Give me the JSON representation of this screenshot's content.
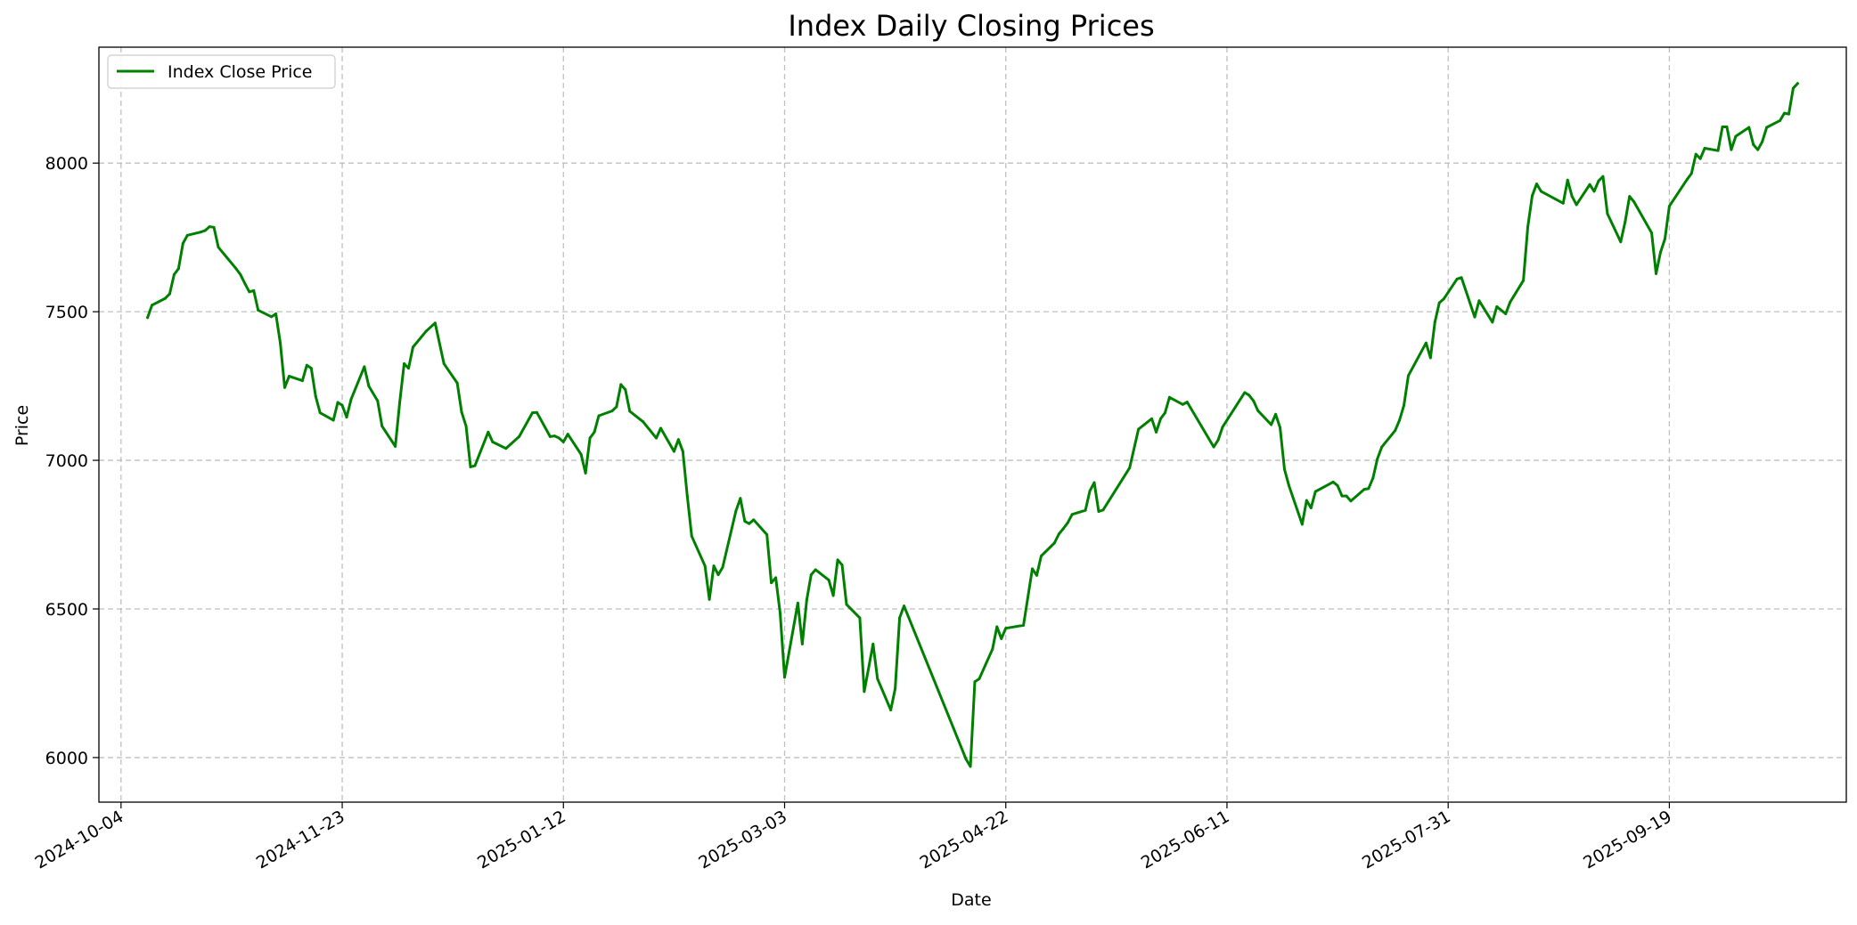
{
  "chart_data": {
    "type": "line",
    "title": "Index Daily Closing Prices",
    "xlabel": "Date",
    "ylabel": "Price",
    "x_type": "date",
    "xlim": [
      "2024-09-29",
      "2025-10-29"
    ],
    "ylim": [
      5850,
      8390
    ],
    "x_ticks": [
      "2024-10-04",
      "2024-11-23",
      "2025-01-12",
      "2025-03-03",
      "2025-04-22",
      "2025-06-11",
      "2025-07-31",
      "2025-09-19"
    ],
    "y_ticks": [
      6000,
      6500,
      7000,
      7500,
      8000
    ],
    "grid": true,
    "legend_position": "upper left",
    "colors": {
      "series": "#008000",
      "grid": "#b0b0b0",
      "axes": "#000000"
    },
    "series": [
      {
        "name": "Index Close Price",
        "color": "#008000",
        "points": [
          [
            "2024-10-10",
            7480
          ],
          [
            "2024-10-11",
            7522
          ],
          [
            "2024-10-14",
            7545
          ],
          [
            "2024-10-15",
            7560
          ],
          [
            "2024-10-16",
            7625
          ],
          [
            "2024-10-17",
            7645
          ],
          [
            "2024-10-18",
            7730
          ],
          [
            "2024-10-19",
            7757
          ],
          [
            "2024-10-22",
            7768
          ],
          [
            "2024-10-23",
            7773
          ],
          [
            "2024-10-24",
            7786
          ],
          [
            "2024-10-25",
            7784
          ],
          [
            "2024-10-26",
            7717
          ],
          [
            "2024-10-30",
            7645
          ],
          [
            "2024-10-31",
            7625
          ],
          [
            "2024-11-01",
            7595
          ],
          [
            "2024-11-02",
            7567
          ],
          [
            "2024-11-03",
            7571
          ],
          [
            "2024-11-04",
            7505
          ],
          [
            "2024-11-07",
            7483
          ],
          [
            "2024-11-08",
            7493
          ],
          [
            "2024-11-09",
            7395
          ],
          [
            "2024-11-10",
            7245
          ],
          [
            "2024-11-11",
            7283
          ],
          [
            "2024-11-14",
            7268
          ],
          [
            "2024-11-15",
            7320
          ],
          [
            "2024-11-16",
            7310
          ],
          [
            "2024-11-17",
            7215
          ],
          [
            "2024-11-18",
            7160
          ],
          [
            "2024-11-21",
            7135
          ],
          [
            "2024-11-22",
            7195
          ],
          [
            "2024-11-23",
            7185
          ],
          [
            "2024-11-24",
            7145
          ],
          [
            "2024-11-25",
            7205
          ],
          [
            "2024-11-28",
            7315
          ],
          [
            "2024-11-29",
            7250
          ],
          [
            "2024-12-01",
            7200
          ],
          [
            "2024-12-02",
            7115
          ],
          [
            "2024-12-05",
            7047
          ],
          [
            "2024-12-06",
            7195
          ],
          [
            "2024-12-07",
            7325
          ],
          [
            "2024-12-08",
            7310
          ],
          [
            "2024-12-09",
            7381
          ],
          [
            "2024-12-12",
            7435
          ],
          [
            "2024-12-14",
            7462
          ],
          [
            "2024-12-16",
            7325
          ],
          [
            "2024-12-19",
            7260
          ],
          [
            "2024-12-20",
            7162
          ],
          [
            "2024-12-21",
            7115
          ],
          [
            "2024-12-22",
            6978
          ],
          [
            "2024-12-23",
            6982
          ],
          [
            "2024-12-26",
            7095
          ],
          [
            "2024-12-27",
            7062
          ],
          [
            "2024-12-30",
            7040
          ],
          [
            "2025-01-02",
            7080
          ],
          [
            "2025-01-05",
            7160
          ],
          [
            "2025-01-06",
            7161
          ],
          [
            "2025-01-09",
            7080
          ],
          [
            "2025-01-10",
            7082
          ],
          [
            "2025-01-11",
            7075
          ],
          [
            "2025-01-12",
            7062
          ],
          [
            "2025-01-13",
            7088
          ],
          [
            "2025-01-16",
            7020
          ],
          [
            "2025-01-17",
            6957
          ],
          [
            "2025-01-18",
            7075
          ],
          [
            "2025-01-19",
            7095
          ],
          [
            "2025-01-20",
            7150
          ],
          [
            "2025-01-23",
            7166
          ],
          [
            "2025-01-24",
            7180
          ],
          [
            "2025-01-25",
            7255
          ],
          [
            "2025-01-26",
            7238
          ],
          [
            "2025-01-27",
            7165
          ],
          [
            "2025-01-30",
            7130
          ],
          [
            "2025-02-02",
            7075
          ],
          [
            "2025-02-03",
            7108
          ],
          [
            "2025-02-06",
            7030
          ],
          [
            "2025-02-07",
            7070
          ],
          [
            "2025-02-08",
            7030
          ],
          [
            "2025-02-09",
            6880
          ],
          [
            "2025-02-10",
            6745
          ],
          [
            "2025-02-13",
            6645
          ],
          [
            "2025-02-14",
            6532
          ],
          [
            "2025-02-15",
            6645
          ],
          [
            "2025-02-16",
            6615
          ],
          [
            "2025-02-17",
            6640
          ],
          [
            "2025-02-20",
            6830
          ],
          [
            "2025-02-21",
            6872
          ],
          [
            "2025-02-22",
            6795
          ],
          [
            "2025-02-23",
            6787
          ],
          [
            "2025-02-24",
            6800
          ],
          [
            "2025-02-27",
            6750
          ],
          [
            "2025-02-28",
            6588
          ],
          [
            "2025-03-01",
            6605
          ],
          [
            "2025-03-02",
            6485
          ],
          [
            "2025-03-03",
            6270
          ],
          [
            "2025-03-06",
            6520
          ],
          [
            "2025-03-07",
            6382
          ],
          [
            "2025-03-08",
            6530
          ],
          [
            "2025-03-09",
            6615
          ],
          [
            "2025-03-10",
            6632
          ],
          [
            "2025-03-13",
            6597
          ],
          [
            "2025-03-14",
            6545
          ],
          [
            "2025-03-15",
            6665
          ],
          [
            "2025-03-16",
            6648
          ],
          [
            "2025-03-17",
            6515
          ],
          [
            "2025-03-20",
            6470
          ],
          [
            "2025-03-21",
            6222
          ],
          [
            "2025-03-23",
            6382
          ],
          [
            "2025-03-24",
            6265
          ],
          [
            "2025-03-27",
            6160
          ],
          [
            "2025-03-28",
            6232
          ],
          [
            "2025-03-29",
            6470
          ],
          [
            "2025-03-30",
            6510
          ],
          [
            "2025-04-13",
            5995
          ],
          [
            "2025-04-14",
            5970
          ],
          [
            "2025-04-15",
            6255
          ],
          [
            "2025-04-16",
            6265
          ],
          [
            "2025-04-19",
            6365
          ],
          [
            "2025-04-20",
            6440
          ],
          [
            "2025-04-21",
            6400
          ],
          [
            "2025-04-22",
            6435
          ],
          [
            "2025-04-26",
            6445
          ],
          [
            "2025-04-28",
            6635
          ],
          [
            "2025-04-29",
            6613
          ],
          [
            "2025-04-30",
            6678
          ],
          [
            "2025-05-03",
            6722
          ],
          [
            "2025-05-04",
            6752
          ],
          [
            "2025-05-05",
            6770
          ],
          [
            "2025-05-06",
            6790
          ],
          [
            "2025-05-07",
            6818
          ],
          [
            "2025-05-10",
            6832
          ],
          [
            "2025-05-11",
            6897
          ],
          [
            "2025-05-12",
            6925
          ],
          [
            "2025-05-13",
            6828
          ],
          [
            "2025-05-14",
            6833
          ],
          [
            "2025-05-20",
            6975
          ],
          [
            "2025-05-22",
            7105
          ],
          [
            "2025-05-25",
            7140
          ],
          [
            "2025-05-26",
            7095
          ],
          [
            "2025-05-27",
            7140
          ],
          [
            "2025-05-28",
            7160
          ],
          [
            "2025-05-29",
            7212
          ],
          [
            "2025-06-01",
            7188
          ],
          [
            "2025-06-02",
            7196
          ],
          [
            "2025-06-08",
            7045
          ],
          [
            "2025-06-09",
            7068
          ],
          [
            "2025-06-10",
            7112
          ],
          [
            "2025-06-15",
            7228
          ],
          [
            "2025-06-16",
            7219
          ],
          [
            "2025-06-17",
            7200
          ],
          [
            "2025-06-18",
            7167
          ],
          [
            "2025-06-21",
            7120
          ],
          [
            "2025-06-22",
            7155
          ],
          [
            "2025-06-23",
            7110
          ],
          [
            "2025-06-24",
            6970
          ],
          [
            "2025-06-25",
            6915
          ],
          [
            "2025-06-28",
            6785
          ],
          [
            "2025-06-29",
            6865
          ],
          [
            "2025-06-30",
            6840
          ],
          [
            "2025-07-01",
            6895
          ],
          [
            "2025-07-05",
            6927
          ],
          [
            "2025-07-06",
            6915
          ],
          [
            "2025-07-07",
            6880
          ],
          [
            "2025-07-08",
            6880
          ],
          [
            "2025-07-09",
            6863
          ],
          [
            "2025-07-12",
            6902
          ],
          [
            "2025-07-13",
            6905
          ],
          [
            "2025-07-14",
            6940
          ],
          [
            "2025-07-15",
            7005
          ],
          [
            "2025-07-16",
            7045
          ],
          [
            "2025-07-19",
            7100
          ],
          [
            "2025-07-20",
            7135
          ],
          [
            "2025-07-21",
            7185
          ],
          [
            "2025-07-22",
            7285
          ],
          [
            "2025-07-26",
            7395
          ],
          [
            "2025-07-27",
            7345
          ],
          [
            "2025-07-28",
            7465
          ],
          [
            "2025-07-29",
            7530
          ],
          [
            "2025-07-30",
            7543
          ],
          [
            "2025-08-02",
            7610
          ],
          [
            "2025-08-03",
            7615
          ],
          [
            "2025-08-06",
            7482
          ],
          [
            "2025-08-07",
            7537
          ],
          [
            "2025-08-10",
            7465
          ],
          [
            "2025-08-11",
            7517
          ],
          [
            "2025-08-13",
            7493
          ],
          [
            "2025-08-14",
            7532
          ],
          [
            "2025-08-17",
            7605
          ],
          [
            "2025-08-18",
            7785
          ],
          [
            "2025-08-19",
            7890
          ],
          [
            "2025-08-20",
            7930
          ],
          [
            "2025-08-21",
            7905
          ],
          [
            "2025-08-26",
            7865
          ],
          [
            "2025-08-27",
            7943
          ],
          [
            "2025-08-28",
            7888
          ],
          [
            "2025-08-29",
            7860
          ],
          [
            "2025-09-01",
            7928
          ],
          [
            "2025-09-02",
            7905
          ],
          [
            "2025-09-03",
            7940
          ],
          [
            "2025-09-04",
            7955
          ],
          [
            "2025-09-05",
            7830
          ],
          [
            "2025-09-08",
            7735
          ],
          [
            "2025-09-09",
            7802
          ],
          [
            "2025-09-10",
            7888
          ],
          [
            "2025-09-11",
            7870
          ],
          [
            "2025-09-15",
            7765
          ],
          [
            "2025-09-16",
            7628
          ],
          [
            "2025-09-17",
            7700
          ],
          [
            "2025-09-18",
            7745
          ],
          [
            "2025-09-19",
            7855
          ],
          [
            "2025-09-23",
            7945
          ],
          [
            "2025-09-24",
            7965
          ],
          [
            "2025-09-25",
            8030
          ],
          [
            "2025-09-26",
            8015
          ],
          [
            "2025-09-27",
            8050
          ],
          [
            "2025-09-30",
            8042
          ],
          [
            "2025-10-01",
            8122
          ],
          [
            "2025-10-02",
            8122
          ],
          [
            "2025-10-03",
            8045
          ],
          [
            "2025-10-04",
            8090
          ],
          [
            "2025-10-07",
            8120
          ],
          [
            "2025-10-08",
            8062
          ],
          [
            "2025-10-09",
            8045
          ],
          [
            "2025-10-10",
            8072
          ],
          [
            "2025-10-11",
            8120
          ],
          [
            "2025-10-14",
            8143
          ],
          [
            "2025-10-15",
            8168
          ],
          [
            "2025-10-16",
            8165
          ],
          [
            "2025-10-17",
            8252
          ],
          [
            "2025-10-18",
            8268
          ]
        ]
      }
    ]
  }
}
